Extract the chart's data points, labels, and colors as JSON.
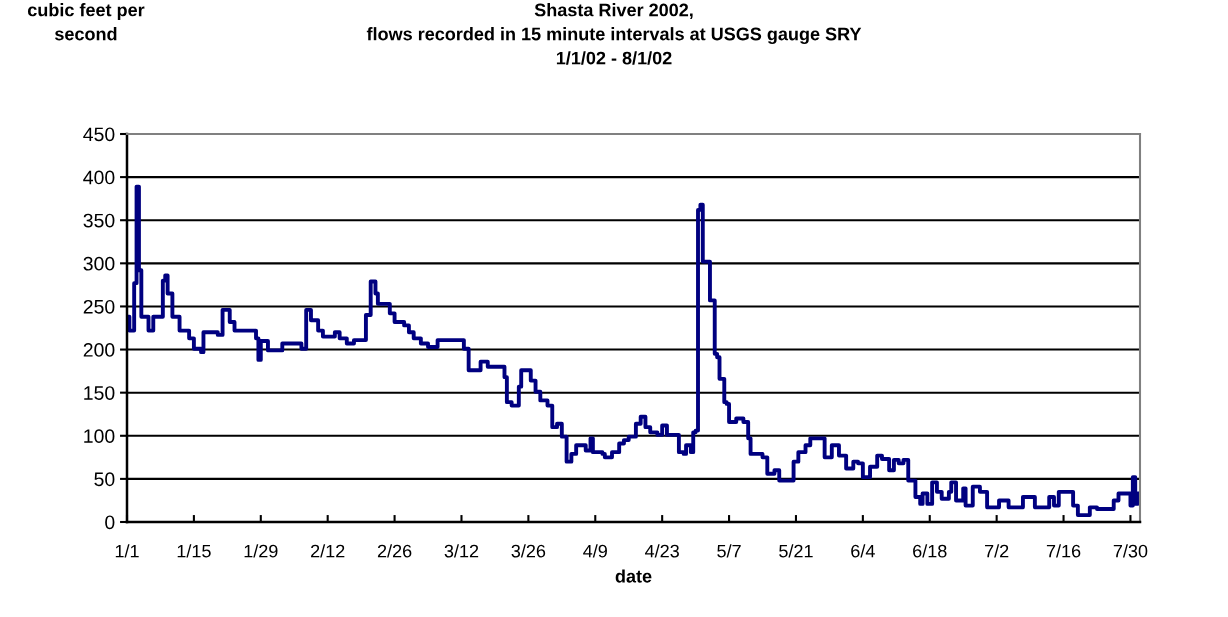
{
  "chart_data": {
    "type": "step",
    "title": "Shasta River 2002,\nflows recorded in 15 minute intervals at USGS gauge SRY\n1/1/02 - 8/1/02",
    "ylabel": "cubic feet per\nsecond",
    "xlabel": "date",
    "x": [
      "2002-01-01",
      "2002-01-01T12:00",
      "2002-01-02T12:00",
      "2002-01-03",
      "2002-01-03T12:00",
      "2002-01-04",
      "2002-01-05T12:00",
      "2002-01-06T12:00",
      "2002-01-08T12:00",
      "2002-01-09",
      "2002-01-09T12:00",
      "2002-01-10T12:00",
      "2002-01-12",
      "2002-01-14",
      "2002-01-15",
      "2002-01-16T12:00",
      "2002-01-17",
      "2002-01-20",
      "2002-01-21",
      "2002-01-22T12:00",
      "2002-01-23T12:00",
      "2002-01-28",
      "2002-01-28T12:00",
      "2002-01-29",
      "2002-01-30T12:00",
      "2002-02-02T12:00",
      "2002-02-06T12:00",
      "2002-02-07T12:00",
      "2002-02-08T12:00",
      "2002-02-10",
      "2002-02-11",
      "2002-02-13T12:00",
      "2002-02-14T12:00",
      "2002-02-16",
      "2002-02-17T12:00",
      "2002-02-20",
      "2002-02-21",
      "2002-02-22",
      "2002-02-22T12:00",
      "2002-02-25",
      "2002-02-26",
      "2002-02-28",
      "2002-03-01",
      "2002-03-02",
      "2002-03-03T12:00",
      "2002-03-05",
      "2002-03-07",
      "2002-03-12T12:00",
      "2002-03-13T12:00",
      "2002-03-16",
      "2002-03-17T12:00",
      "2002-03-21",
      "2002-03-21T12:00",
      "2002-03-22T12:00",
      "2002-03-24",
      "2002-03-24T12:00",
      "2002-03-26T12:00",
      "2002-03-27T12:00",
      "2002-03-28T12:00",
      "2002-03-30",
      "2002-03-31",
      "2002-04-01",
      "2002-04-02",
      "2002-04-03",
      "2002-04-04",
      "2002-04-05",
      "2002-04-07",
      "2002-04-08",
      "2002-04-08T12:00",
      "2002-04-10T12:00",
      "2002-04-11",
      "2002-04-12T12:00",
      "2002-04-14",
      "2002-04-15",
      "2002-04-16",
      "2002-04-17T12:00",
      "2002-04-18T12:00",
      "2002-04-19T12:00",
      "2002-04-20T12:00",
      "2002-04-22",
      "2002-04-23",
      "2002-04-24",
      "2002-04-26T12:00",
      "2002-04-27T12:00",
      "2002-04-28",
      "2002-04-29",
      "2002-04-29T12:00",
      "2002-04-30",
      "2002-04-30T12:00",
      "2002-05-01",
      "2002-05-01T12:00",
      "2002-05-03",
      "2002-05-04",
      "2002-05-04T12:00",
      "2002-05-05",
      "2002-05-06",
      "2002-05-06T12:00",
      "2002-05-07",
      "2002-05-08T12:00",
      "2002-05-10",
      "2002-05-11",
      "2002-05-11T12:00",
      "2002-05-14",
      "2002-05-15",
      "2002-05-16T12:00",
      "2002-05-17T12:00",
      "2002-05-20T12:00",
      "2002-05-21T12:00",
      "2002-05-23",
      "2002-05-24",
      "2002-05-27",
      "2002-05-28T12:00",
      "2002-05-30",
      "2002-05-31T12:00",
      "2002-06-02",
      "2002-06-03",
      "2002-06-04",
      "2002-06-05T12:00",
      "2002-06-07",
      "2002-06-08",
      "2002-06-09T12:00",
      "2002-06-10T12:00",
      "2002-06-11T12:00",
      "2002-06-12T12:00",
      "2002-06-13T12:00",
      "2002-06-15",
      "2002-06-16",
      "2002-06-16T12:00",
      "2002-06-17T12:00",
      "2002-06-18T12:00",
      "2002-06-19T12:00",
      "2002-06-20T12:00",
      "2002-06-22",
      "2002-06-22T12:00",
      "2002-06-23T12:00",
      "2002-06-25",
      "2002-06-25T12:00",
      "2002-06-27",
      "2002-06-28T12:00",
      "2002-06-30",
      "2002-07-02T12:00",
      "2002-07-04T12:00",
      "2002-07-07T12:00",
      "2002-07-10",
      "2002-07-13",
      "2002-07-14",
      "2002-07-15",
      "2002-07-18",
      "2002-07-19",
      "2002-07-21T12:00",
      "2002-07-23",
      "2002-07-26T12:00",
      "2002-07-27T12:00",
      "2002-07-30",
      "2002-07-30T12:00",
      "2002-07-31",
      "2002-07-31T12:00",
      "2002-08-01"
    ],
    "series": [
      {
        "color": "#000080",
        "values": [
          238,
          222,
          277,
          389,
          292,
          238,
          222,
          238,
          280,
          286,
          265,
          238,
          222,
          213,
          201,
          197,
          220,
          217,
          246,
          232,
          222,
          213,
          188,
          210,
          199,
          207,
          201,
          246,
          234,
          222,
          215,
          220,
          213,
          207,
          211,
          240,
          279,
          265,
          253,
          242,
          232,
          228,
          220,
          213,
          207,
          203,
          211,
          201,
          176,
          186,
          180,
          168,
          139,
          135,
          157,
          176,
          164,
          151,
          141,
          135,
          110,
          114,
          99,
          70,
          79,
          89,
          83,
          97,
          81,
          79,
          75,
          81,
          91,
          95,
          99,
          114,
          122,
          110,
          104,
          101,
          112,
          101,
          81,
          79,
          89,
          81,
          104,
          106,
          362,
          368,
          302,
          257,
          195,
          191,
          166,
          139,
          137,
          116,
          120,
          116,
          97,
          79,
          75,
          56,
          60,
          48,
          70,
          81,
          89,
          97,
          75,
          89,
          77,
          62,
          70,
          68,
          52,
          64,
          77,
          73,
          60,
          72,
          68,
          72,
          48,
          29,
          21,
          33,
          21,
          46,
          35,
          27,
          35,
          46,
          25,
          39,
          19,
          41,
          35,
          17,
          25,
          17,
          29,
          17,
          29,
          19,
          35,
          19,
          8,
          17,
          15,
          25,
          33,
          19,
          52,
          21,
          33,
          33
        ]
      }
    ],
    "xlim": [
      "2002-01-01",
      "2002-08-01"
    ],
    "xticks": [
      {
        "value": "2002-01-01",
        "label": "1/1"
      },
      {
        "value": "2002-01-15",
        "label": "1/15"
      },
      {
        "value": "2002-01-29",
        "label": "1/29"
      },
      {
        "value": "2002-02-12",
        "label": "2/12"
      },
      {
        "value": "2002-02-26",
        "label": "2/26"
      },
      {
        "value": "2002-03-12",
        "label": "3/12"
      },
      {
        "value": "2002-03-26",
        "label": "3/26"
      },
      {
        "value": "2002-04-09",
        "label": "4/9"
      },
      {
        "value": "2002-04-23",
        "label": "4/23"
      },
      {
        "value": "2002-05-07",
        "label": "5/7"
      },
      {
        "value": "2002-05-21",
        "label": "5/21"
      },
      {
        "value": "2002-06-04",
        "label": "6/4"
      },
      {
        "value": "2002-06-18",
        "label": "6/18"
      },
      {
        "value": "2002-07-02",
        "label": "7/2"
      },
      {
        "value": "2002-07-16",
        "label": "7/16"
      },
      {
        "value": "2002-07-30",
        "label": "7/30"
      }
    ],
    "ylim": [
      0,
      450
    ],
    "yticks": [
      0,
      50,
      100,
      150,
      200,
      250,
      300,
      350,
      400,
      450
    ],
    "grid": "y",
    "legend": false
  }
}
